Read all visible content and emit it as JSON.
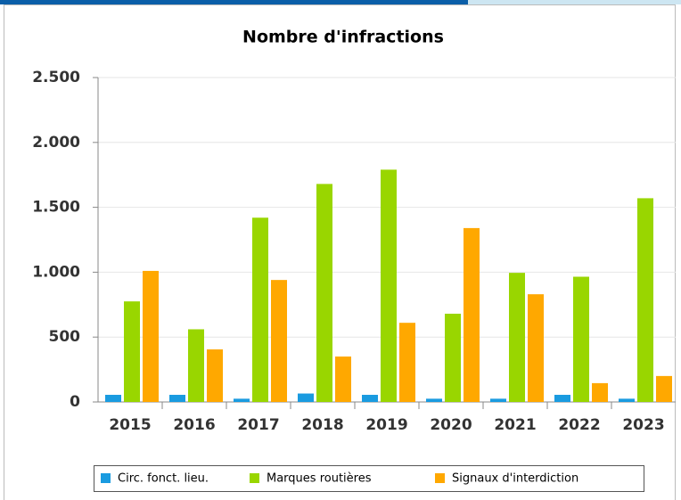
{
  "chart_data": {
    "type": "bar",
    "title": "Nombre d'infractions",
    "categories": [
      "2015",
      "2016",
      "2017",
      "2018",
      "2019",
      "2020",
      "2021",
      "2022",
      "2023"
    ],
    "series": [
      {
        "name": "Circ. fonct. lieu.",
        "color": "#1a9be0",
        "values": [
          55,
          55,
          25,
          65,
          55,
          25,
          25,
          55,
          25
        ]
      },
      {
        "name": "Marques routières",
        "color": "#99d600",
        "values": [
          775,
          560,
          1420,
          1680,
          1790,
          680,
          995,
          965,
          1570
        ]
      },
      {
        "name": "Signaux d'interdiction",
        "color": "#ffa800",
        "values": [
          1010,
          405,
          940,
          350,
          610,
          1340,
          830,
          145,
          200
        ]
      }
    ],
    "ylim": [
      0,
      2500
    ],
    "yticks": [
      0,
      {
        "value": 500,
        "label": "500"
      },
      {
        "value": 1000,
        "label": "1.000"
      },
      {
        "value": 1500,
        "label": "1.500"
      },
      {
        "value": 2000,
        "label": "2.000"
      },
      {
        "value": 2500,
        "label": "2.500"
      }
    ],
    "grid": true
  }
}
